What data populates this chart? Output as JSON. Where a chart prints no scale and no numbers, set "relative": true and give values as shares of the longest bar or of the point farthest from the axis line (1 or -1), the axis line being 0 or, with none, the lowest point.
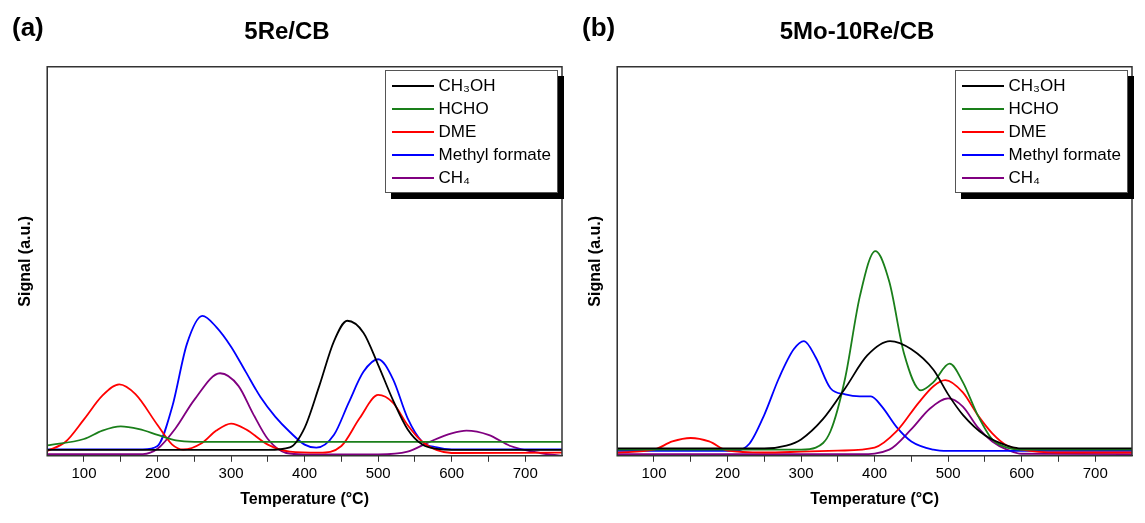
{
  "chart_data": [
    {
      "type": "line",
      "title": "5Re/CB",
      "xlabel": "Temperature (°C)",
      "ylabel": "Signal (a.u.)",
      "annotations": [
        "(a)"
      ],
      "relative": true,
      "legend": "top right",
      "grid": false,
      "marker": "none",
      "line_style": "solid",
      "xlim": [
        50,
        750
      ],
      "xticks": [
        100,
        {
          "value": 150,
          "label": null
        },
        200,
        {
          "value": 250,
          "label": null
        },
        300,
        {
          "value": 350,
          "label": null
        },
        400,
        {
          "value": 450,
          "label": null
        },
        500,
        {
          "value": 550,
          "label": null
        },
        600,
        {
          "value": 650,
          "label": null
        },
        700
      ],
      "series": [
        {
          "name": "CH₃OH",
          "color": "#000000",
          "x": [
            50,
            350,
            380,
            400,
            420,
            440,
            458,
            480,
            500,
            520,
            540,
            560,
            580,
            600,
            750
          ],
          "values": [
            0.042,
            0.042,
            0.06,
            0.2,
            0.5,
            0.82,
            0.965,
            0.88,
            0.65,
            0.4,
            0.19,
            0.08,
            0.05,
            0.042,
            0.042
          ]
        },
        {
          "name": "HCHO",
          "color": "#1a7f1a",
          "x": [
            50,
            100,
            125,
            150,
            175,
            200,
            225,
            250,
            750
          ],
          "values": [
            0.074,
            0.12,
            0.18,
            0.21,
            0.19,
            0.15,
            0.11,
            0.1,
            0.1
          ]
        },
        {
          "name": "DME",
          "color": "#ff0000",
          "x": [
            50,
            75,
            100,
            125,
            148,
            170,
            200,
            220,
            235,
            260,
            280,
            300,
            320,
            350,
            380,
            420,
            450,
            475,
            500,
            520,
            540,
            560,
            580,
            600,
            750
          ],
          "values": [
            0.035,
            0.1,
            0.26,
            0.43,
            0.51,
            0.44,
            0.22,
            0.08,
            0.045,
            0.09,
            0.18,
            0.23,
            0.19,
            0.08,
            0.03,
            0.023,
            0.07,
            0.27,
            0.435,
            0.38,
            0.22,
            0.1,
            0.04,
            0.02,
            0.023
          ]
        },
        {
          "name": "Methyl formate",
          "color": "#0000ff",
          "x": [
            50,
            180,
            200,
            220,
            240,
            261,
            280,
            300,
            320,
            340,
            360,
            380,
            400,
            416,
            440,
            460,
            480,
            500,
            520,
            540,
            560,
            580,
            600,
            750
          ],
          "values": [
            0.046,
            0.046,
            0.07,
            0.35,
            0.8,
            1.0,
            0.92,
            0.78,
            0.6,
            0.42,
            0.28,
            0.17,
            0.08,
            0.058,
            0.15,
            0.38,
            0.6,
            0.69,
            0.55,
            0.27,
            0.1,
            0.06,
            0.046,
            0.046
          ]
        },
        {
          "name": "CH₄",
          "color": "#800080",
          "x": [
            50,
            180,
            200,
            225,
            250,
            285,
            310,
            330,
            350,
            375,
            400,
            500,
            540,
            570,
            600,
            620,
            650,
            680,
            720,
            750
          ],
          "values": [
            0.012,
            0.012,
            0.05,
            0.2,
            0.4,
            0.59,
            0.5,
            0.3,
            0.12,
            0.02,
            0.01,
            0.01,
            0.03,
            0.1,
            0.16,
            0.18,
            0.15,
            0.07,
            0.02,
            0
          ]
        }
      ]
    },
    {
      "type": "line",
      "title": "5Mo-10Re/CB",
      "xlabel": "Temperature (°C)",
      "ylabel": "Signal (a.u.)",
      "annotations": [
        "(b)"
      ],
      "relative": true,
      "legend": "top right",
      "grid": false,
      "marker": "none",
      "line_style": "solid",
      "xlim": [
        50,
        750
      ],
      "xticks": [
        100,
        {
          "value": 150,
          "label": null
        },
        200,
        {
          "value": 250,
          "label": null
        },
        300,
        {
          "value": 350,
          "label": null
        },
        400,
        {
          "value": 450,
          "label": null
        },
        500,
        {
          "value": 550,
          "label": null
        },
        600,
        {
          "value": 650,
          "label": null
        },
        700
      ],
      "series": [
        {
          "name": "CH₃OH",
          "color": "#000000",
          "x": [
            50,
            250,
            280,
            300,
            330,
            360,
            390,
            421,
            450,
            480,
            500,
            520,
            550,
            580,
            600,
            750
          ],
          "values": [
            0.036,
            0.036,
            0.05,
            0.08,
            0.18,
            0.33,
            0.49,
            0.56,
            0.52,
            0.42,
            0.3,
            0.2,
            0.1,
            0.05,
            0.036,
            0.036
          ]
        },
        {
          "name": "HCHO",
          "color": "#1a7f1a",
          "x": [
            50,
            300,
            320,
            340,
            360,
            380,
            401,
            420,
            440,
            463,
            480,
            502,
            520,
            540,
            560,
            580,
            600,
            750
          ],
          "values": [
            0.03,
            0.03,
            0.04,
            0.12,
            0.38,
            0.78,
            1.0,
            0.85,
            0.5,
            0.32,
            0.36,
            0.45,
            0.36,
            0.2,
            0.08,
            0.04,
            0.03,
            0.03
          ]
        },
        {
          "name": "DME",
          "color": "#ff0000",
          "x": [
            50,
            100,
            125,
            150,
            175,
            200,
            250,
            300,
            350,
            400,
            430,
            460,
            480,
            496,
            520,
            540,
            560,
            580,
            600,
            650,
            750
          ],
          "values": [
            0.016,
            0.03,
            0.07,
            0.087,
            0.07,
            0.025,
            0.016,
            0.02,
            0.025,
            0.04,
            0.12,
            0.26,
            0.34,
            0.37,
            0.31,
            0.2,
            0.11,
            0.05,
            0.03,
            0.016,
            0.016
          ]
        },
        {
          "name": "Methyl formate",
          "color": "#0000ff",
          "x": [
            50,
            210,
            230,
            250,
            270,
            290,
            304,
            320,
            340,
            360,
            380,
            395,
            410,
            430,
            450,
            480,
            500,
            750
          ],
          "values": [
            0.024,
            0.024,
            0.06,
            0.2,
            0.38,
            0.52,
            0.56,
            0.48,
            0.33,
            0.3,
            0.29,
            0.29,
            0.24,
            0.14,
            0.07,
            0.03,
            0.024,
            0.024
          ]
        },
        {
          "name": "CH₄",
          "color": "#800080",
          "x": [
            50,
            380,
            420,
            450,
            475,
            500,
            520,
            540,
            560,
            580,
            600,
            750
          ],
          "values": [
            0.008,
            0.008,
            0.03,
            0.13,
            0.23,
            0.28,
            0.24,
            0.14,
            0.07,
            0.03,
            0.01,
            0.008
          ]
        }
      ]
    }
  ]
}
